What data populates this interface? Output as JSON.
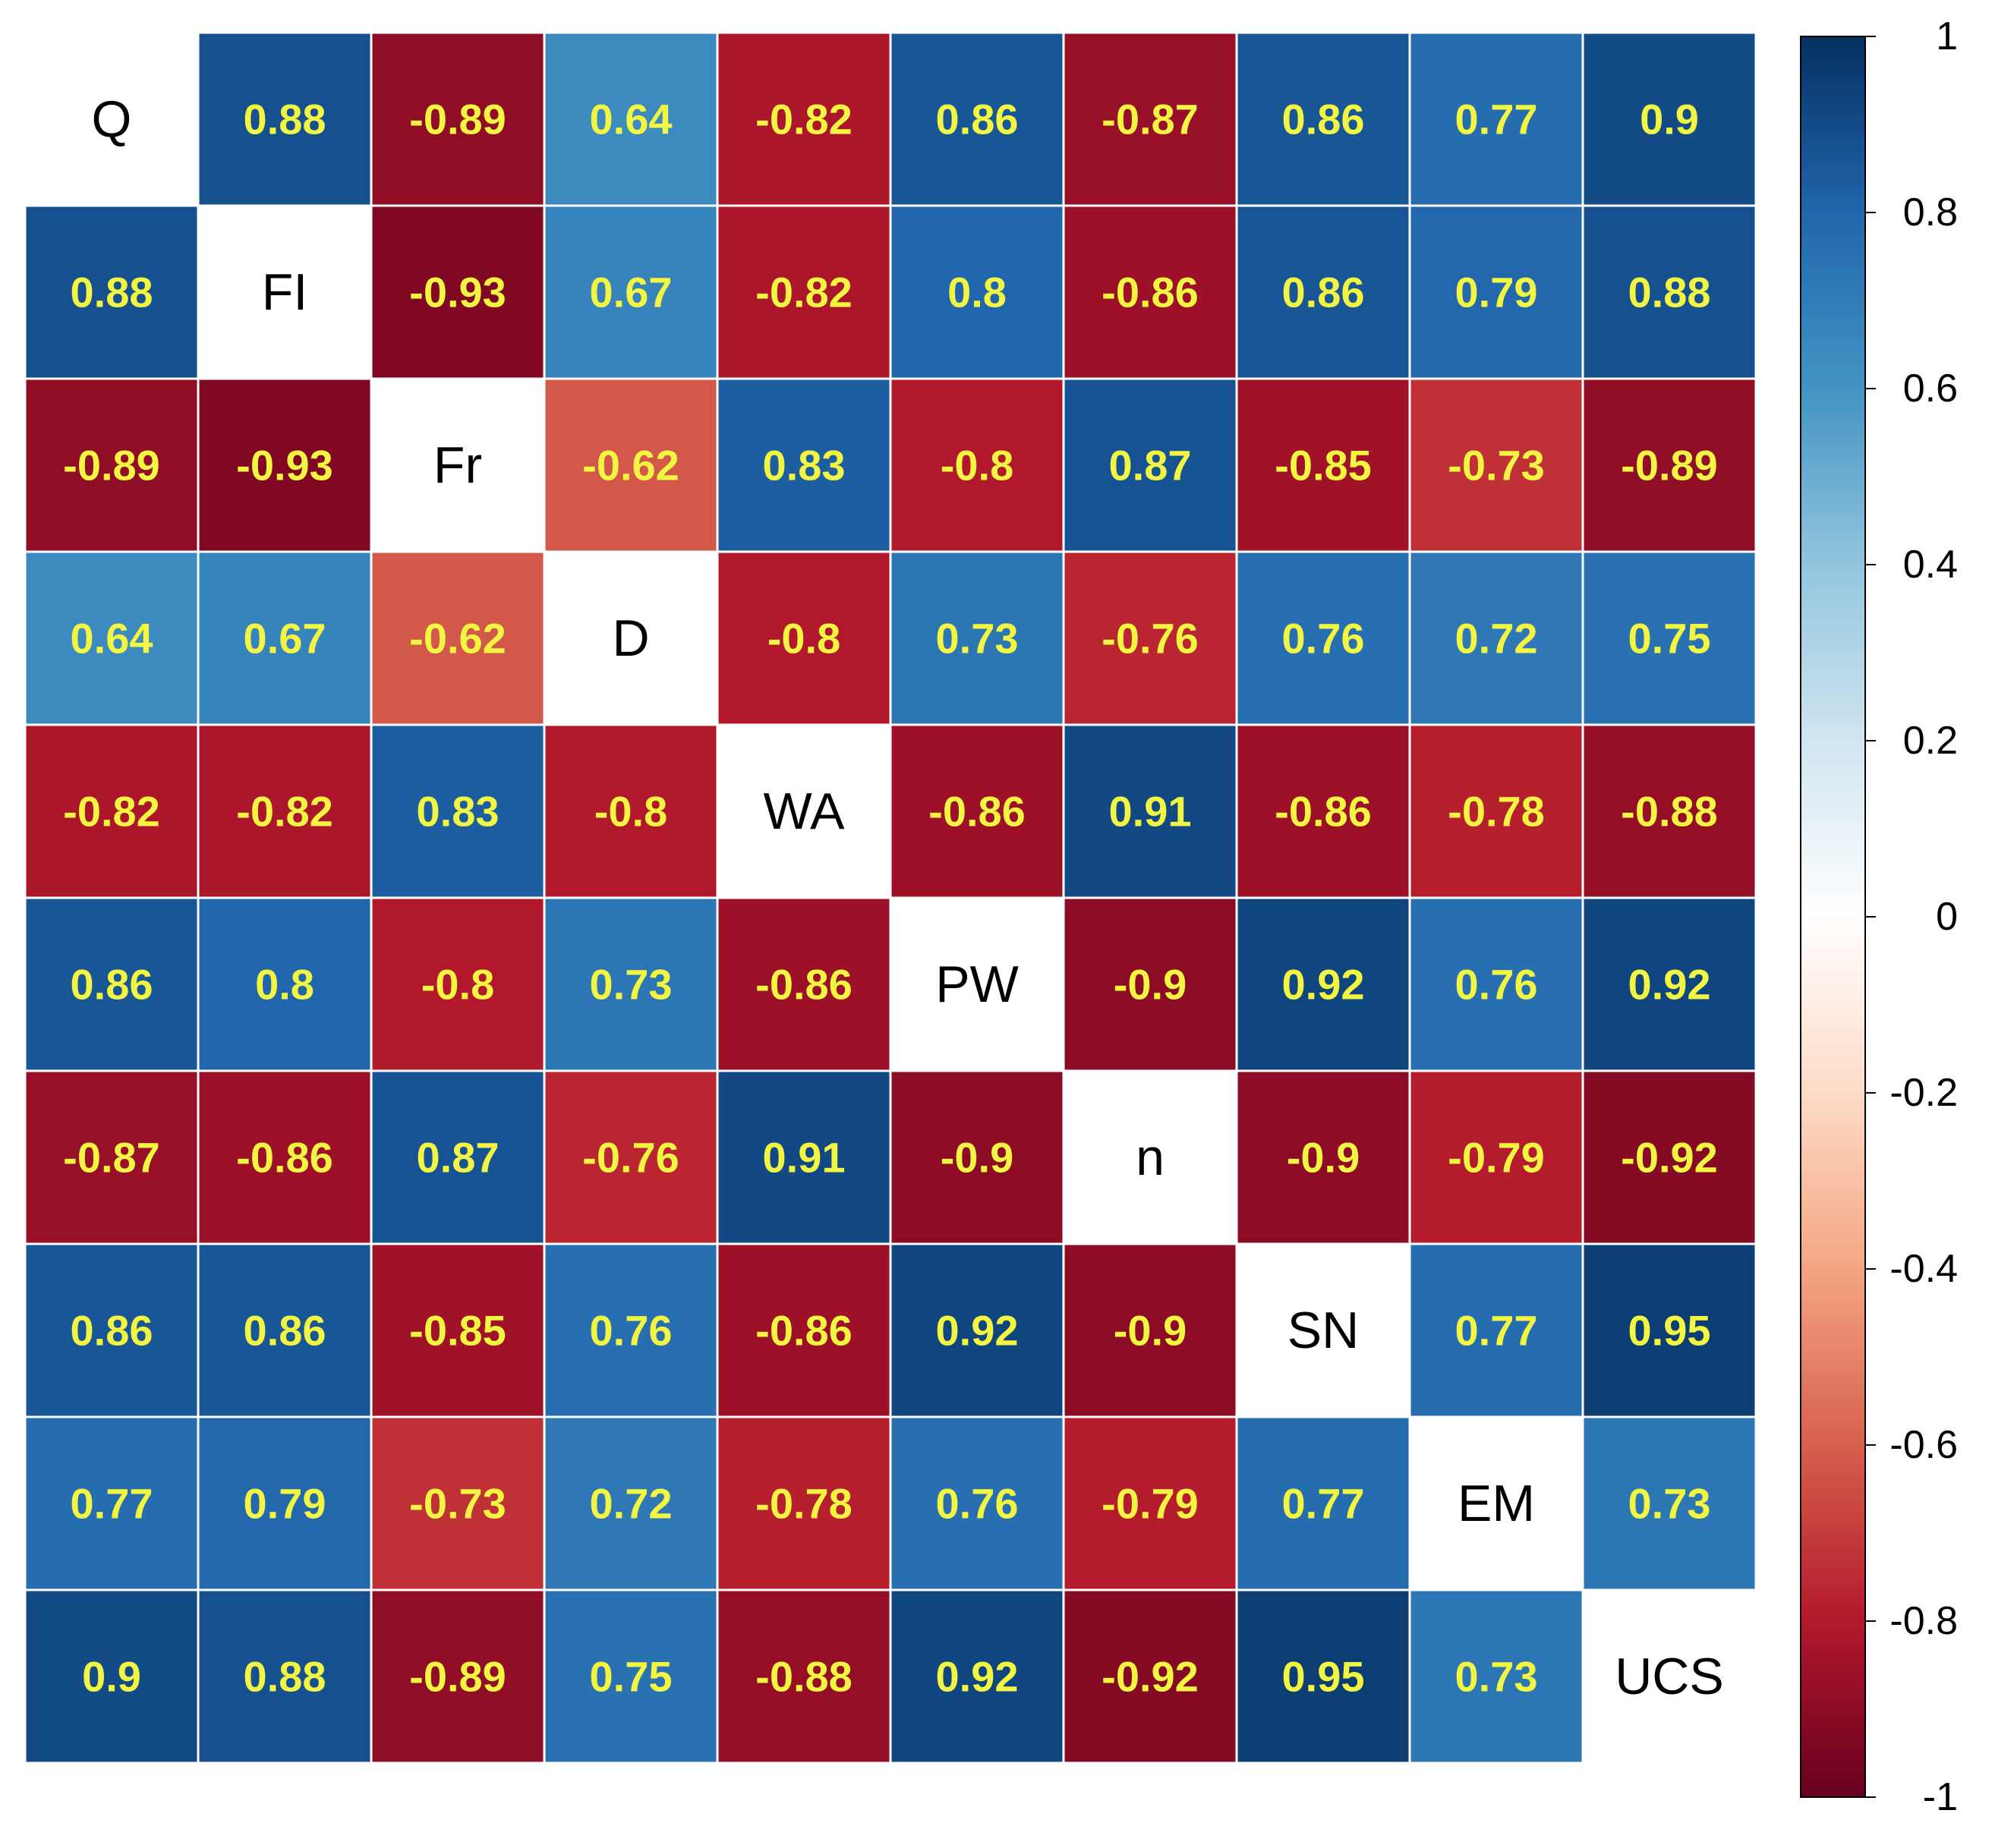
{
  "chart_data": {
    "type": "heatmap",
    "title": "",
    "variables": [
      "Q",
      "FI",
      "Fr",
      "D",
      "WA",
      "PW",
      "n",
      "SN",
      "EM",
      "UCS"
    ],
    "matrix": [
      [
        null,
        0.88,
        -0.89,
        0.64,
        -0.82,
        0.86,
        -0.87,
        0.86,
        0.77,
        0.9
      ],
      [
        0.88,
        null,
        -0.93,
        0.67,
        -0.82,
        0.8,
        -0.86,
        0.86,
        0.79,
        0.88
      ],
      [
        -0.89,
        -0.93,
        null,
        -0.62,
        0.83,
        -0.8,
        0.87,
        -0.85,
        -0.73,
        -0.89
      ],
      [
        0.64,
        0.67,
        -0.62,
        null,
        -0.8,
        0.73,
        -0.76,
        0.76,
        0.72,
        0.75
      ],
      [
        -0.82,
        -0.82,
        0.83,
        -0.8,
        null,
        -0.86,
        0.91,
        -0.86,
        -0.78,
        -0.88
      ],
      [
        0.86,
        0.8,
        -0.8,
        0.73,
        -0.86,
        null,
        -0.9,
        0.92,
        0.76,
        0.92
      ],
      [
        -0.87,
        -0.86,
        0.87,
        -0.76,
        0.91,
        -0.9,
        null,
        -0.9,
        -0.79,
        -0.92
      ],
      [
        0.86,
        0.86,
        -0.85,
        0.76,
        -0.86,
        0.92,
        -0.9,
        null,
        0.77,
        0.95
      ],
      [
        0.77,
        0.79,
        -0.73,
        0.72,
        -0.78,
        0.76,
        -0.79,
        0.77,
        null,
        0.73
      ],
      [
        0.9,
        0.88,
        -0.89,
        0.75,
        -0.88,
        0.92,
        -0.92,
        0.95,
        0.73,
        null
      ]
    ],
    "colorbar": {
      "range": [
        -1,
        1
      ],
      "ticks": [
        1,
        0.8,
        0.6,
        0.4,
        0.2,
        0,
        -0.2,
        -0.4,
        -0.6,
        -0.8,
        -1
      ],
      "tick_labels": [
        "1",
        "0.8",
        "0.6",
        "0.4",
        "0.2",
        "0",
        "-0.2",
        "-0.4",
        "-0.6",
        "-0.8",
        "-1"
      ],
      "colors": [
        "#67001f",
        "#b2182b",
        "#d6604d",
        "#f4a582",
        "#fddbc7",
        "#ffffff",
        "#d1e5f0",
        "#92c5de",
        "#4393c3",
        "#2166ac",
        "#053061"
      ],
      "placement": "right"
    },
    "value_label_color": "#f2f542",
    "diagonal_label_color": "#000000",
    "grid_line_color": "#ffffff"
  }
}
